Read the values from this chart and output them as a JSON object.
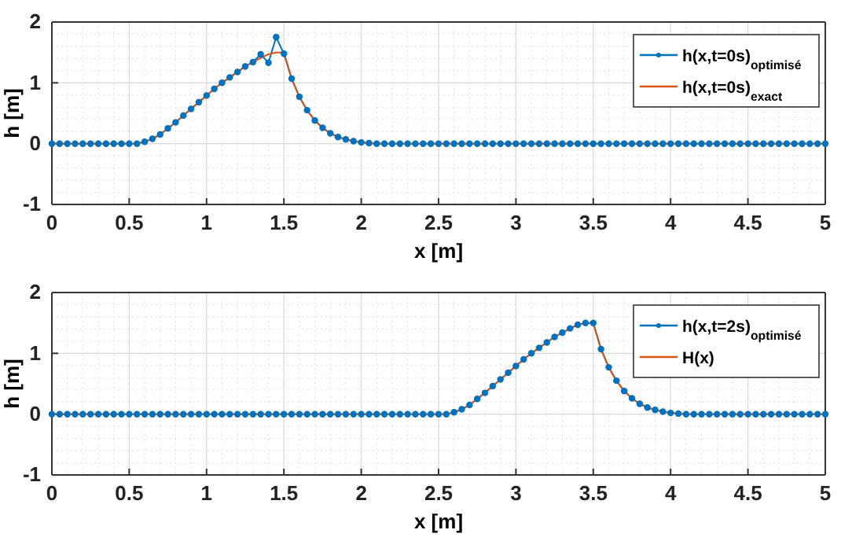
{
  "chart_data": [
    {
      "type": "line",
      "xlabel": "x [m]",
      "ylabel": "h [m]",
      "xlim": [
        0,
        5
      ],
      "ylim": [
        -1,
        2
      ],
      "xticks": [
        0,
        0.5,
        1,
        1.5,
        2,
        2.5,
        3,
        3.5,
        4,
        4.5,
        5
      ],
      "yticks": [
        -1,
        0,
        1,
        2
      ],
      "grid": true,
      "legend": "top right",
      "x": [
        0,
        0.05,
        0.1,
        0.15,
        0.2,
        0.25,
        0.3,
        0.35,
        0.4,
        0.45,
        0.5,
        0.55,
        0.6,
        0.65,
        0.7,
        0.75,
        0.8,
        0.85,
        0.9,
        0.95,
        1,
        1.05,
        1.1,
        1.15,
        1.2,
        1.25,
        1.3,
        1.35,
        1.4,
        1.45,
        1.5,
        1.55,
        1.6,
        1.65,
        1.7,
        1.75,
        1.8,
        1.85,
        1.9,
        1.95,
        2,
        2.05,
        2.1,
        2.15,
        2.2,
        2.25,
        2.3,
        2.35,
        2.4,
        2.45,
        2.5,
        2.55,
        2.6,
        2.65,
        2.7,
        2.75,
        2.8,
        2.85,
        2.9,
        2.95,
        3,
        3.05,
        3.1,
        3.15,
        3.2,
        3.25,
        3.3,
        3.35,
        3.4,
        3.45,
        3.5,
        3.55,
        3.6,
        3.65,
        3.7,
        3.75,
        3.8,
        3.85,
        3.9,
        3.95,
        4,
        4.05,
        4.1,
        4.15,
        4.2,
        4.25,
        4.3,
        4.35,
        4.4,
        4.45,
        4.5,
        4.55,
        4.6,
        4.65,
        4.7,
        4.75,
        4.8,
        4.85,
        4.9,
        4.95,
        5
      ],
      "series": [
        {
          "name": "h(x,t=0s)$_{optimisé}$",
          "color": "#0072bd",
          "marker": "circle",
          "values": [
            0,
            0,
            0,
            0,
            0,
            0,
            0,
            0,
            0,
            0,
            0,
            0,
            0.03,
            0.08,
            0.15,
            0.25,
            0.35,
            0.46,
            0.57,
            0.68,
            0.79,
            0.9,
            1.0,
            1.09,
            1.18,
            1.27,
            1.34,
            1.47,
            1.33,
            1.75,
            1.48,
            1.07,
            0.77,
            0.55,
            0.38,
            0.26,
            0.17,
            0.11,
            0.07,
            0.04,
            0.02,
            0.01,
            0,
            0,
            0,
            0,
            0,
            0,
            0,
            0,
            0,
            0,
            0,
            0,
            0,
            0,
            0,
            0,
            0,
            0,
            0,
            0,
            0,
            0,
            0,
            0,
            0,
            0,
            0,
            0,
            0,
            0,
            0,
            0,
            0,
            0,
            0,
            0,
            0,
            0,
            0,
            0,
            0,
            0,
            0,
            0,
            0,
            0,
            0,
            0,
            0,
            0,
            0,
            0,
            0,
            0,
            0,
            0,
            0,
            0,
            0
          ]
        },
        {
          "name": "h(x,t=0s)$_{exact}$",
          "color": "#d95319",
          "marker": "none",
          "values": [
            0,
            0,
            0,
            0,
            0,
            0,
            0,
            0,
            0,
            0,
            0,
            0,
            0.03,
            0.08,
            0.15,
            0.25,
            0.35,
            0.46,
            0.57,
            0.68,
            0.79,
            0.9,
            1.0,
            1.09,
            1.18,
            1.27,
            1.34,
            1.41,
            1.47,
            1.5,
            1.5,
            1.07,
            0.77,
            0.55,
            0.38,
            0.26,
            0.17,
            0.11,
            0.07,
            0.04,
            0.02,
            0.01,
            0,
            0,
            0,
            0,
            0,
            0,
            0,
            0,
            0,
            0,
            0,
            0,
            0,
            0,
            0,
            0,
            0,
            0,
            0,
            0,
            0,
            0,
            0,
            0,
            0,
            0,
            0,
            0,
            0,
            0,
            0,
            0,
            0,
            0,
            0,
            0,
            0,
            0,
            0,
            0,
            0,
            0,
            0,
            0,
            0,
            0,
            0,
            0,
            0,
            0,
            0,
            0,
            0,
            0,
            0,
            0,
            0,
            0,
            0
          ]
        }
      ]
    },
    {
      "type": "line",
      "xlabel": "x [m]",
      "ylabel": "h [m]",
      "xlim": [
        0,
        5
      ],
      "ylim": [
        -1,
        2
      ],
      "xticks": [
        0,
        0.5,
        1,
        1.5,
        2,
        2.5,
        3,
        3.5,
        4,
        4.5,
        5
      ],
      "yticks": [
        -1,
        0,
        1,
        2
      ],
      "grid": true,
      "legend": "top right",
      "x": [
        0,
        0.05,
        0.1,
        0.15,
        0.2,
        0.25,
        0.3,
        0.35,
        0.4,
        0.45,
        0.5,
        0.55,
        0.6,
        0.65,
        0.7,
        0.75,
        0.8,
        0.85,
        0.9,
        0.95,
        1,
        1.05,
        1.1,
        1.15,
        1.2,
        1.25,
        1.3,
        1.35,
        1.4,
        1.45,
        1.5,
        1.55,
        1.6,
        1.65,
        1.7,
        1.75,
        1.8,
        1.85,
        1.9,
        1.95,
        2,
        2.05,
        2.1,
        2.15,
        2.2,
        2.25,
        2.3,
        2.35,
        2.4,
        2.45,
        2.5,
        2.55,
        2.6,
        2.65,
        2.7,
        2.75,
        2.8,
        2.85,
        2.9,
        2.95,
        3,
        3.05,
        3.1,
        3.15,
        3.2,
        3.25,
        3.3,
        3.35,
        3.4,
        3.45,
        3.5,
        3.55,
        3.6,
        3.65,
        3.7,
        3.75,
        3.8,
        3.85,
        3.9,
        3.95,
        4,
        4.05,
        4.1,
        4.15,
        4.2,
        4.25,
        4.3,
        4.35,
        4.4,
        4.45,
        4.5,
        4.55,
        4.6,
        4.65,
        4.7,
        4.75,
        4.8,
        4.85,
        4.9,
        4.95,
        5
      ],
      "series": [
        {
          "name": "h(x,t=2s)$_{optimisé}$",
          "color": "#0072bd",
          "marker": "circle",
          "values": [
            0,
            0,
            0,
            0,
            0,
            0,
            0,
            0,
            0,
            0,
            0,
            0,
            0,
            0,
            0,
            0,
            0,
            0,
            0,
            0,
            0,
            0,
            0,
            0,
            0,
            0,
            0,
            0,
            0,
            0,
            0,
            0,
            0,
            0,
            0,
            0,
            0,
            0,
            0,
            0,
            0,
            0,
            0,
            0,
            0,
            0,
            0,
            0,
            0,
            0,
            0,
            0,
            0.03,
            0.08,
            0.15,
            0.25,
            0.35,
            0.46,
            0.57,
            0.68,
            0.79,
            0.9,
            1.0,
            1.09,
            1.18,
            1.27,
            1.34,
            1.41,
            1.47,
            1.5,
            1.5,
            1.07,
            0.77,
            0.55,
            0.38,
            0.26,
            0.17,
            0.11,
            0.07,
            0.04,
            0.02,
            0.01,
            0,
            0,
            0,
            0,
            0,
            0,
            0,
            0,
            0,
            0,
            0,
            0,
            0,
            0,
            0,
            0,
            0,
            0,
            0
          ]
        },
        {
          "name": "H(x)",
          "color": "#d95319",
          "marker": "none",
          "values": [
            0,
            0,
            0,
            0,
            0,
            0,
            0,
            0,
            0,
            0,
            0,
            0,
            0,
            0,
            0,
            0,
            0,
            0,
            0,
            0,
            0,
            0,
            0,
            0,
            0,
            0,
            0,
            0,
            0,
            0,
            0,
            0,
            0,
            0,
            0,
            0,
            0,
            0,
            0,
            0,
            0,
            0,
            0,
            0,
            0,
            0,
            0,
            0,
            0,
            0,
            0,
            0,
            0.03,
            0.08,
            0.15,
            0.25,
            0.35,
            0.46,
            0.57,
            0.68,
            0.79,
            0.9,
            1.0,
            1.09,
            1.18,
            1.27,
            1.34,
            1.41,
            1.47,
            1.5,
            1.5,
            1.07,
            0.77,
            0.55,
            0.38,
            0.26,
            0.17,
            0.11,
            0.07,
            0.04,
            0.02,
            0.01,
            0,
            0,
            0,
            0,
            0,
            0,
            0,
            0,
            0,
            0,
            0,
            0,
            0,
            0,
            0,
            0,
            0,
            0,
            0
          ]
        }
      ]
    }
  ]
}
